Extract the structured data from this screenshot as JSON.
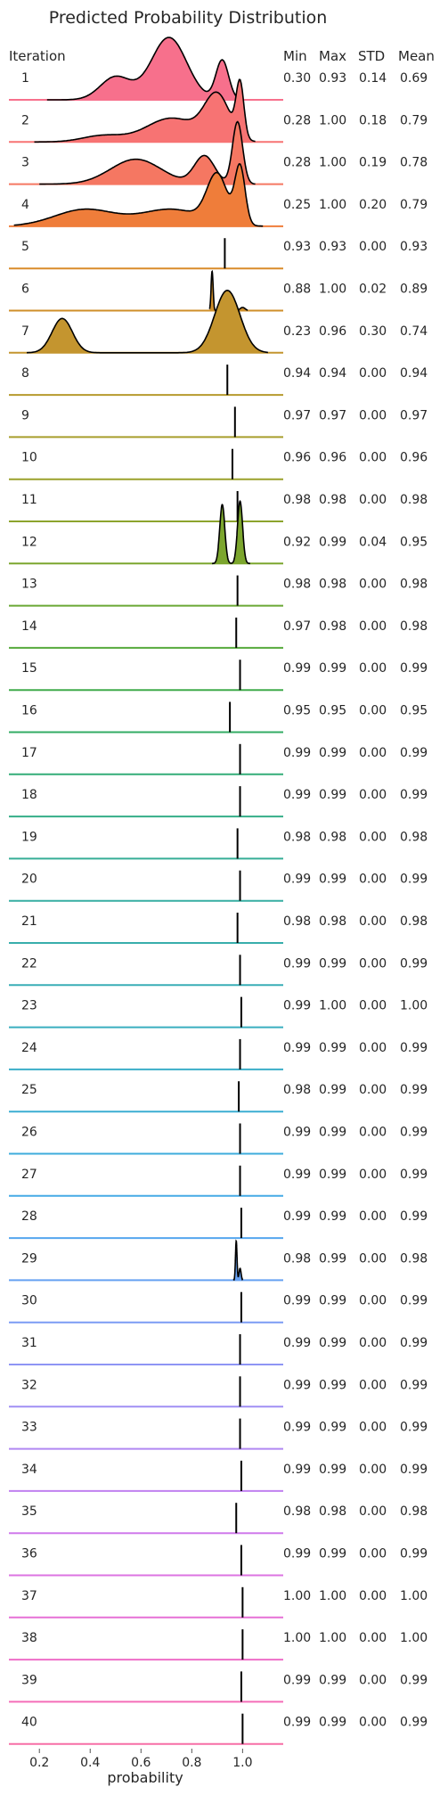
{
  "chart_data": {
    "type": "ridgeline",
    "title": "Predicted Probability Distribution",
    "xlabel": "probability",
    "xlim": [
      0.08,
      1.16
    ],
    "xticks": [
      {
        "value": 0.2,
        "label": "0.2"
      },
      {
        "value": 0.4,
        "label": "0.4"
      },
      {
        "value": 0.6,
        "label": "0.6"
      },
      {
        "value": 0.8,
        "label": "0.8"
      },
      {
        "value": 1.0,
        "label": "1.0"
      }
    ],
    "column_headers": {
      "iteration": "Iteration",
      "min": "Min",
      "max": "Max",
      "std": "STD",
      "mean": "Mean"
    },
    "rows": [
      {
        "iteration": "1",
        "min": "0.30",
        "max": "0.93",
        "std": "0.14",
        "mean": "0.69",
        "color": "#f7708c",
        "peaks": [
          [
            0.5,
            0.06,
            0.35
          ],
          [
            0.71,
            0.07,
            0.95
          ],
          [
            0.92,
            0.025,
            0.6
          ]
        ],
        "range": [
          0.23,
          1.0
        ]
      },
      {
        "iteration": "2",
        "min": "0.28",
        "max": "1.00",
        "std": "0.18",
        "mean": "0.79",
        "color": "#f77373",
        "peaks": [
          [
            0.45,
            0.08,
            0.12
          ],
          [
            0.72,
            0.1,
            0.45
          ],
          [
            0.9,
            0.05,
            0.85
          ],
          [
            0.99,
            0.015,
            1.0
          ]
        ],
        "range": [
          0.18,
          1.05
        ]
      },
      {
        "iteration": "3",
        "min": "0.28",
        "max": "1.00",
        "std": "0.19",
        "mean": "0.78",
        "color": "#f57762",
        "peaks": [
          [
            0.58,
            0.1,
            0.4
          ],
          [
            0.85,
            0.04,
            0.45
          ],
          [
            0.98,
            0.02,
            1.0
          ]
        ],
        "range": [
          0.2,
          1.05
        ]
      },
      {
        "iteration": "4",
        "min": "0.25",
        "max": "1.00",
        "std": "0.20",
        "mean": "0.79",
        "color": "#ef7d3a",
        "peaks": [
          [
            0.38,
            0.12,
            0.28
          ],
          [
            0.72,
            0.12,
            0.28
          ],
          [
            0.9,
            0.04,
            0.8
          ],
          [
            0.99,
            0.02,
            0.95
          ]
        ],
        "range": [
          0.1,
          1.08
        ]
      },
      {
        "iteration": "5",
        "min": "0.93",
        "max": "0.93",
        "std": "0.00",
        "mean": "0.93",
        "color": "#d98c2a",
        "peaks": [
          [
            0.93,
            0.002,
            1.0
          ]
        ],
        "range": [
          0.92,
          0.94
        ]
      },
      {
        "iteration": "6",
        "min": "0.88",
        "max": "1.00",
        "std": "0.02",
        "mean": "0.89",
        "color": "#cf8f2a",
        "peaks": [
          [
            0.88,
            0.004,
            1.0
          ],
          [
            1.0,
            0.01,
            0.08
          ]
        ],
        "range": [
          0.87,
          1.02
        ]
      },
      {
        "iteration": "7",
        "min": "0.23",
        "max": "0.96",
        "std": "0.30",
        "mean": "0.74",
        "color": "#c4952f",
        "peaks": [
          [
            0.29,
            0.04,
            0.55
          ],
          [
            0.94,
            0.05,
            1.0
          ]
        ],
        "range": [
          0.15,
          1.1
        ]
      },
      {
        "iteration": "8",
        "min": "0.94",
        "max": "0.94",
        "std": "0.00",
        "mean": "0.94",
        "color": "#b69a2d",
        "peaks": [
          [
            0.94,
            0.002,
            1.0
          ]
        ],
        "range": [
          0.93,
          0.95
        ]
      },
      {
        "iteration": "9",
        "min": "0.97",
        "max": "0.97",
        "std": "0.00",
        "mean": "0.97",
        "color": "#a89e2c",
        "peaks": [
          [
            0.97,
            0.002,
            1.0
          ]
        ],
        "range": [
          0.96,
          0.98
        ]
      },
      {
        "iteration": "10",
        "min": "0.96",
        "max": "0.96",
        "std": "0.00",
        "mean": "0.96",
        "color": "#9aa12c",
        "peaks": [
          [
            0.96,
            0.002,
            1.0
          ]
        ],
        "range": [
          0.95,
          0.97
        ]
      },
      {
        "iteration": "11",
        "min": "0.98",
        "max": "0.98",
        "std": "0.00",
        "mean": "0.98",
        "color": "#8ca42c",
        "peaks": [
          [
            0.98,
            0.002,
            1.0
          ]
        ],
        "range": [
          0.97,
          0.99
        ]
      },
      {
        "iteration": "12",
        "min": "0.92",
        "max": "0.99",
        "std": "0.04",
        "mean": "0.95",
        "color": "#7ca62e",
        "peaks": [
          [
            0.92,
            0.01,
            0.85
          ],
          [
            0.99,
            0.01,
            0.9
          ]
        ],
        "range": [
          0.88,
          1.03
        ]
      },
      {
        "iteration": "13",
        "min": "0.98",
        "max": "0.98",
        "std": "0.00",
        "mean": "0.98",
        "color": "#6aa834",
        "peaks": [
          [
            0.98,
            0.002,
            1.0
          ]
        ],
        "range": [
          0.97,
          0.99
        ]
      },
      {
        "iteration": "14",
        "min": "0.97",
        "max": "0.98",
        "std": "0.00",
        "mean": "0.98",
        "color": "#56aa3c",
        "peaks": [
          [
            0.975,
            0.002,
            1.0
          ]
        ],
        "range": [
          0.965,
          0.985
        ]
      },
      {
        "iteration": "15",
        "min": "0.99",
        "max": "0.99",
        "std": "0.00",
        "mean": "0.99",
        "color": "#40ab4c",
        "peaks": [
          [
            0.99,
            0.002,
            1.0
          ]
        ],
        "range": [
          0.98,
          1.0
        ]
      },
      {
        "iteration": "16",
        "min": "0.95",
        "max": "0.95",
        "std": "0.00",
        "mean": "0.95",
        "color": "#33ac64",
        "peaks": [
          [
            0.95,
            0.002,
            1.0
          ]
        ],
        "range": [
          0.94,
          0.96
        ]
      },
      {
        "iteration": "17",
        "min": "0.99",
        "max": "0.99",
        "std": "0.00",
        "mean": "0.99",
        "color": "#33ad78",
        "peaks": [
          [
            0.99,
            0.002,
            1.0
          ]
        ],
        "range": [
          0.98,
          1.0
        ]
      },
      {
        "iteration": "18",
        "min": "0.99",
        "max": "0.99",
        "std": "0.00",
        "mean": "0.99",
        "color": "#35ae88",
        "peaks": [
          [
            0.99,
            0.002,
            1.0
          ]
        ],
        "range": [
          0.98,
          1.0
        ]
      },
      {
        "iteration": "19",
        "min": "0.98",
        "max": "0.98",
        "std": "0.00",
        "mean": "0.98",
        "color": "#36ae96",
        "peaks": [
          [
            0.98,
            0.002,
            1.0
          ]
        ],
        "range": [
          0.97,
          0.99
        ]
      },
      {
        "iteration": "20",
        "min": "0.99",
        "max": "0.99",
        "std": "0.00",
        "mean": "0.99",
        "color": "#37aea2",
        "peaks": [
          [
            0.99,
            0.002,
            1.0
          ]
        ],
        "range": [
          0.98,
          1.0
        ]
      },
      {
        "iteration": "21",
        "min": "0.98",
        "max": "0.98",
        "std": "0.00",
        "mean": "0.98",
        "color": "#38aeac",
        "peaks": [
          [
            0.98,
            0.002,
            1.0
          ]
        ],
        "range": [
          0.97,
          0.99
        ]
      },
      {
        "iteration": "22",
        "min": "0.99",
        "max": "0.99",
        "std": "0.00",
        "mean": "0.99",
        "color": "#38aeb6",
        "peaks": [
          [
            0.99,
            0.002,
            1.0
          ]
        ],
        "range": [
          0.98,
          1.0
        ]
      },
      {
        "iteration": "23",
        "min": "0.99",
        "max": "1.00",
        "std": "0.00",
        "mean": "1.00",
        "color": "#39aebf",
        "peaks": [
          [
            0.995,
            0.002,
            1.0
          ]
        ],
        "range": [
          0.985,
          1.005
        ]
      },
      {
        "iteration": "24",
        "min": "0.99",
        "max": "0.99",
        "std": "0.00",
        "mean": "0.99",
        "color": "#3aaec8",
        "peaks": [
          [
            0.99,
            0.002,
            1.0
          ]
        ],
        "range": [
          0.98,
          1.0
        ]
      },
      {
        "iteration": "25",
        "min": "0.98",
        "max": "0.99",
        "std": "0.00",
        "mean": "0.99",
        "color": "#3cadd2",
        "peaks": [
          [
            0.985,
            0.002,
            1.0
          ]
        ],
        "range": [
          0.975,
          0.995
        ]
      },
      {
        "iteration": "26",
        "min": "0.99",
        "max": "0.99",
        "std": "0.00",
        "mean": "0.99",
        "color": "#3eacdc",
        "peaks": [
          [
            0.99,
            0.002,
            1.0
          ]
        ],
        "range": [
          0.98,
          1.0
        ]
      },
      {
        "iteration": "27",
        "min": "0.99",
        "max": "0.99",
        "std": "0.00",
        "mean": "0.99",
        "color": "#45aae6",
        "peaks": [
          [
            0.99,
            0.002,
            1.0
          ]
        ],
        "range": [
          0.98,
          1.0
        ]
      },
      {
        "iteration": "28",
        "min": "0.99",
        "max": "0.99",
        "std": "0.00",
        "mean": "0.99",
        "color": "#54a6ee",
        "peaks": [
          [
            0.995,
            0.002,
            1.0
          ]
        ],
        "range": [
          0.985,
          1.005
        ]
      },
      {
        "iteration": "29",
        "min": "0.98",
        "max": "0.99",
        "std": "0.00",
        "mean": "0.98",
        "color": "#66a1f2",
        "peaks": [
          [
            0.975,
            0.003,
            1.0
          ],
          [
            0.99,
            0.004,
            0.3
          ]
        ],
        "range": [
          0.965,
          1.0
        ]
      },
      {
        "iteration": "30",
        "min": "0.99",
        "max": "0.99",
        "std": "0.00",
        "mean": "0.99",
        "color": "#7b9bf4",
        "peaks": [
          [
            0.995,
            0.002,
            1.0
          ]
        ],
        "range": [
          0.985,
          1.005
        ]
      },
      {
        "iteration": "31",
        "min": "0.99",
        "max": "0.99",
        "std": "0.00",
        "mean": "0.99",
        "color": "#8e95f4",
        "peaks": [
          [
            0.99,
            0.002,
            1.0
          ]
        ],
        "range": [
          0.98,
          1.0
        ]
      },
      {
        "iteration": "32",
        "min": "0.99",
        "max": "0.99",
        "std": "0.00",
        "mean": "0.99",
        "color": "#a08ff4",
        "peaks": [
          [
            0.99,
            0.002,
            1.0
          ]
        ],
        "range": [
          0.98,
          1.0
        ]
      },
      {
        "iteration": "33",
        "min": "0.99",
        "max": "0.99",
        "std": "0.00",
        "mean": "0.99",
        "color": "#b188f2",
        "peaks": [
          [
            0.99,
            0.002,
            1.0
          ]
        ],
        "range": [
          0.98,
          1.0
        ]
      },
      {
        "iteration": "34",
        "min": "0.99",
        "max": "0.99",
        "std": "0.00",
        "mean": "0.99",
        "color": "#c181f0",
        "peaks": [
          [
            0.995,
            0.002,
            1.0
          ]
        ],
        "range": [
          0.985,
          1.005
        ]
      },
      {
        "iteration": "35",
        "min": "0.98",
        "max": "0.98",
        "std": "0.00",
        "mean": "0.98",
        "color": "#cf7aeb",
        "peaks": [
          [
            0.975,
            0.002,
            1.0
          ]
        ],
        "range": [
          0.965,
          0.985
        ]
      },
      {
        "iteration": "36",
        "min": "0.99",
        "max": "0.99",
        "std": "0.00",
        "mean": "0.99",
        "color": "#dc74e2",
        "peaks": [
          [
            0.995,
            0.002,
            1.0
          ]
        ],
        "range": [
          0.985,
          1.005
        ]
      },
      {
        "iteration": "37",
        "min": "1.00",
        "max": "1.00",
        "std": "0.00",
        "mean": "1.00",
        "color": "#e670d6",
        "peaks": [
          [
            1.0,
            0.002,
            1.0
          ]
        ],
        "range": [
          0.99,
          1.01
        ]
      },
      {
        "iteration": "38",
        "min": "1.00",
        "max": "1.00",
        "std": "0.00",
        "mean": "1.00",
        "color": "#ee6ec8",
        "peaks": [
          [
            1.0,
            0.002,
            1.0
          ]
        ],
        "range": [
          0.99,
          1.01
        ]
      },
      {
        "iteration": "39",
        "min": "0.99",
        "max": "0.99",
        "std": "0.00",
        "mean": "0.99",
        "color": "#f46eb8",
        "peaks": [
          [
            0.995,
            0.002,
            1.0
          ]
        ],
        "range": [
          0.985,
          1.005
        ]
      },
      {
        "iteration": "40",
        "min": "0.99",
        "max": "0.99",
        "std": "0.00",
        "mean": "0.99",
        "color": "#f76fa6",
        "peaks": [
          [
            1.0,
            0.002,
            1.0
          ]
        ],
        "range": [
          0.99,
          1.01
        ]
      }
    ]
  }
}
